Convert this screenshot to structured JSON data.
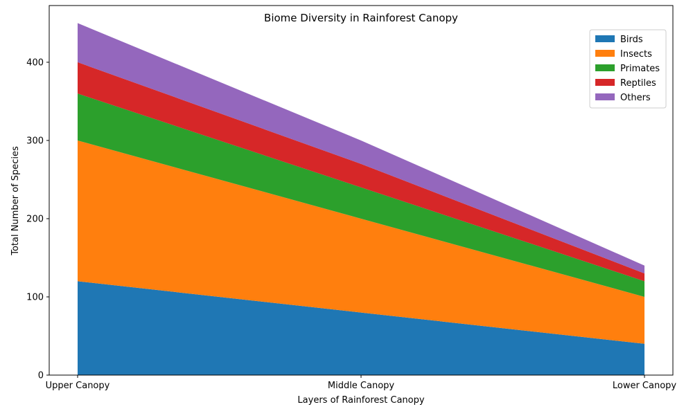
{
  "chart_data": {
    "type": "area",
    "stacked": true,
    "title": "Biome Diversity in Rainforest Canopy",
    "xlabel": "Layers of Rainforest Canopy",
    "ylabel": "Total Number of Species",
    "categories": [
      "Upper Canopy",
      "Middle Canopy",
      "Lower Canopy"
    ],
    "ylim": [
      0,
      472.5
    ],
    "yticks": [
      0,
      100,
      200,
      300,
      400
    ],
    "grid": false,
    "legend_position": "top-right",
    "series": [
      {
        "name": "Birds",
        "values": [
          120,
          80,
          40
        ],
        "color": "#1f77b4"
      },
      {
        "name": "Insects",
        "values": [
          180,
          120,
          60
        ],
        "color": "#ff7f0e"
      },
      {
        "name": "Primates",
        "values": [
          60,
          40,
          20
        ],
        "color": "#2ca02c"
      },
      {
        "name": "Reptiles",
        "values": [
          40,
          30,
          10
        ],
        "color": "#d62728"
      },
      {
        "name": "Others",
        "values": [
          50,
          30,
          10
        ],
        "color": "#9467bd"
      }
    ]
  }
}
